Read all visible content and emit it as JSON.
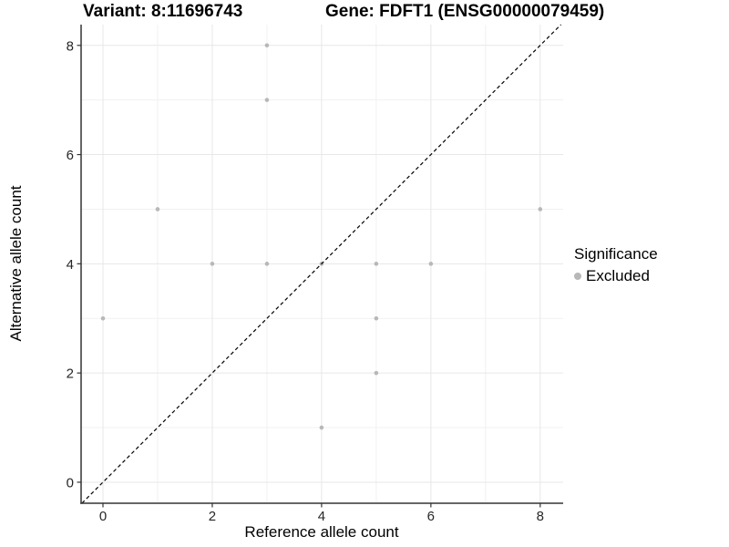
{
  "chart_data": {
    "type": "scatter",
    "titles": {
      "variant": "Variant: 8:11696743",
      "gene": "Gene: FDFT1 (ENSG00000079459)"
    },
    "xlabel": "Reference allele count",
    "ylabel": "Alternative allele count",
    "xlim": [
      -0.4,
      8.42
    ],
    "ylim": [
      -0.385,
      8.38
    ],
    "x_ticks": [
      0,
      2,
      4,
      6,
      8
    ],
    "y_ticks": [
      0,
      2,
      4,
      6,
      8
    ],
    "x_minor_breaks": [
      1,
      3,
      5,
      7
    ],
    "y_minor_breaks": [
      1,
      3,
      5,
      7
    ],
    "grid": "major+minor",
    "identity_line": {
      "slope": 1,
      "intercept": 0,
      "style": "dashed",
      "color": "#000000"
    },
    "series": [
      {
        "name": "Excluded",
        "color": "#b8b8b8",
        "marker": "circle",
        "marker_radius": 2.3,
        "points": [
          [
            0,
            3
          ],
          [
            1,
            5
          ],
          [
            2,
            4
          ],
          [
            3,
            4
          ],
          [
            3,
            7
          ],
          [
            3,
            8
          ],
          [
            4,
            1
          ],
          [
            4,
            4
          ],
          [
            5,
            2
          ],
          [
            5,
            3
          ],
          [
            5,
            4
          ],
          [
            6,
            4
          ],
          [
            8,
            5
          ]
        ]
      }
    ],
    "legend": {
      "title": "Significance",
      "position": "right",
      "entries": [
        {
          "label": "Excluded",
          "color": "#b8b8b8"
        }
      ]
    },
    "colors": {
      "grid_major": "#e7e7e7",
      "grid_minor": "#f1f1f1",
      "axis_line": "#333333",
      "tick_label": "#262626",
      "background": "#ffffff"
    }
  }
}
